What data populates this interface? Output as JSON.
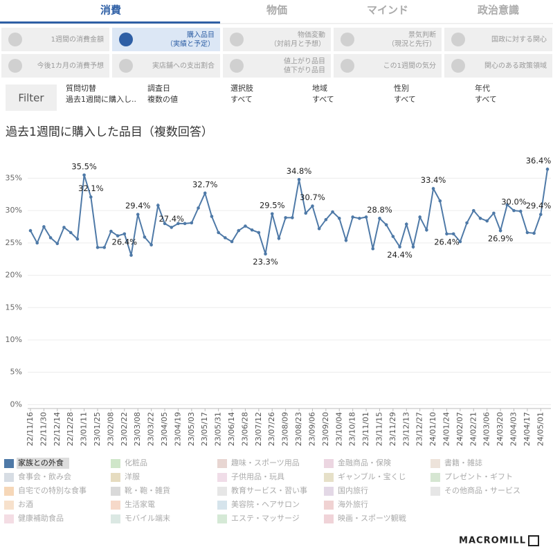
{
  "tabs": [
    "消費",
    "物価",
    "マインド",
    "政治意識"
  ],
  "menu": [
    [
      "1週間の消費金額"
    ],
    [
      "購入品目",
      "（実績と予定）"
    ],
    [
      "物価変動",
      "（対前月と予想）"
    ],
    [
      "景気判断",
      "（現況と先行）"
    ],
    [
      "国政に対する関心"
    ],
    [
      "今後1カ月の消費予想"
    ],
    [
      "実店舗への支出割合"
    ],
    [
      "値上がり品目",
      "値下がり品目"
    ],
    [
      "この1週間の気分"
    ],
    [
      "関心のある政策領域"
    ]
  ],
  "filter": {
    "label": "Filter",
    "fields": [
      {
        "name": "質問切替",
        "value": "過去1週間に購入し.."
      },
      {
        "name": "調査日",
        "value": "複数の値"
      },
      {
        "name": "選択肢",
        "value": "すべて"
      },
      {
        "name": "地域",
        "value": "すべて"
      },
      {
        "name": "性別",
        "value": "すべて"
      },
      {
        "name": "年代",
        "value": "すべて"
      }
    ]
  },
  "logo": "MACROMILL",
  "chart_data": {
    "type": "line",
    "title": "過去1週間に購入した品目（複数回答）",
    "x": [
      "22/11/16",
      null,
      "22/11/30",
      null,
      "22/12/14",
      null,
      "22/12/28",
      null,
      "23/01/11",
      null,
      "23/01/25",
      null,
      "23/02/08",
      null,
      "23/02/22",
      null,
      "23/03/08",
      null,
      "23/03/22",
      null,
      "23/04/05",
      null,
      "23/04/19",
      null,
      "23/05/03",
      null,
      "23/05/17",
      null,
      "23/05/31",
      null,
      "23/06/14",
      null,
      "23/06/28",
      null,
      "23/07/12",
      null,
      "23/07/26",
      null,
      "23/08/09",
      null,
      "23/08/23",
      null,
      "23/09/06",
      null,
      "23/09/20",
      null,
      "23/10/04",
      null,
      "23/10/18",
      null,
      "23/11/01",
      null,
      "23/11/15",
      null,
      "23/11/29",
      null,
      "23/12/13",
      null,
      "23/12/27",
      null,
      "24/01/10",
      null,
      "24/01/24",
      null,
      "24/02/07",
      null,
      "24/02/21",
      null,
      "24/03/06",
      null,
      "24/03/20",
      null,
      "24/04/03",
      null,
      "24/04/17",
      null,
      "24/05/01",
      null
    ],
    "ylim": [
      -0.6,
      37.4
    ],
    "yticks": [
      {
        "value": 0,
        "label": "0%"
      },
      {
        "value": 5,
        "label": "5%"
      },
      {
        "value": 10,
        "label": "10%"
      },
      {
        "value": 15,
        "label": "15%"
      },
      {
        "value": 20,
        "label": "20%"
      },
      {
        "value": 25,
        "label": "25%"
      },
      {
        "value": 30,
        "label": "30%"
      },
      {
        "value": 35,
        "label": "35%"
      }
    ],
    "grid": true,
    "series": [
      {
        "name": "家族との外食",
        "color": "#4e79a7",
        "values": [
          26.9,
          25.0,
          27.5,
          25.8,
          24.9,
          27.4,
          26.6,
          25.6,
          35.5,
          32.1,
          24.3,
          24.3,
          26.8,
          26.1,
          26.4,
          23.1,
          29.4,
          25.9,
          24.7,
          30.8,
          28.0,
          27.4,
          28.0,
          28.0,
          28.1,
          30.4,
          32.7,
          29.1,
          26.6,
          25.8,
          25.2,
          26.9,
          27.6,
          27.0,
          26.6,
          23.3,
          29.5,
          25.7,
          28.9,
          28.9,
          34.8,
          29.6,
          30.7,
          27.2,
          28.6,
          29.8,
          28.8,
          25.4,
          29.0,
          28.8,
          29.0,
          24.1,
          28.8,
          27.8,
          26.0,
          24.4,
          27.9,
          24.4,
          29.0,
          27.0,
          33.4,
          31.5,
          26.4,
          26.4,
          25.2,
          28.1,
          30.0,
          28.8,
          28.4,
          29.6,
          26.9,
          30.9,
          30.0,
          29.9,
          26.6,
          26.5,
          29.4,
          36.4
        ],
        "value_labels": [
          null,
          null,
          null,
          null,
          null,
          null,
          null,
          null,
          "35.5%",
          "32.1%",
          null,
          null,
          null,
          null,
          "26.4%",
          null,
          "29.4%",
          null,
          null,
          null,
          null,
          "27.4%",
          null,
          null,
          null,
          null,
          "32.7%",
          null,
          null,
          null,
          null,
          null,
          null,
          null,
          null,
          "23.3%",
          "29.5%",
          null,
          null,
          null,
          "34.8%",
          null,
          "30.7%",
          null,
          null,
          null,
          null,
          null,
          null,
          null,
          null,
          null,
          "28.8%",
          null,
          null,
          "24.4%",
          null,
          null,
          null,
          null,
          "33.4%",
          null,
          "26.4%",
          null,
          null,
          null,
          null,
          null,
          null,
          null,
          "26.9%",
          null,
          "30.0%",
          null,
          null,
          null,
          "29.4%",
          "36.4%"
        ]
      },
      {
        "name": "食事会・飲み会",
        "color": "#d7dde4"
      },
      {
        "name": "自宅での特別な食事",
        "color": "#f6d7b8"
      },
      {
        "name": "お酒",
        "color": "#f7e1cc"
      },
      {
        "name": "健康補助食品",
        "color": "#f4dde4"
      },
      {
        "name": "化粧品",
        "color": "#cfe6c9"
      },
      {
        "name": "洋服",
        "color": "#e6dcc0"
      },
      {
        "name": "靴・鞄・雑貨",
        "color": "#d9d9d9"
      },
      {
        "name": "生活家電",
        "color": "#f6d9c9"
      },
      {
        "name": "モバイル端末",
        "color": "#dbe8e3"
      },
      {
        "name": "趣味・スポーツ用品",
        "color": "#e8d6d2"
      },
      {
        "name": "子供用品・玩具",
        "color": "#f0dde8"
      },
      {
        "name": "教育サービス・習い事",
        "color": "#e6e6e6"
      },
      {
        "name": "美容院・ヘアサロン",
        "color": "#d6e4ec"
      },
      {
        "name": "エステ・マッサージ",
        "color": "#d5e9d6"
      },
      {
        "name": "金融商品・保険",
        "color": "#ecd6e1"
      },
      {
        "name": "ギャンブル・宝くじ",
        "color": "#e6e0c8"
      },
      {
        "name": "国内旅行",
        "color": "#e3d8e6"
      },
      {
        "name": "海外旅行",
        "color": "#f0d2d2"
      },
      {
        "name": "映画・スポーツ観戦",
        "color": "#f0d3d8"
      },
      {
        "name": "書籍・雑誌",
        "color": "#ede3da"
      },
      {
        "name": "プレゼント・ギフト",
        "color": "#d6e6d2"
      },
      {
        "name": "その他商品・サービス",
        "color": "#e6e6e6"
      }
    ]
  }
}
